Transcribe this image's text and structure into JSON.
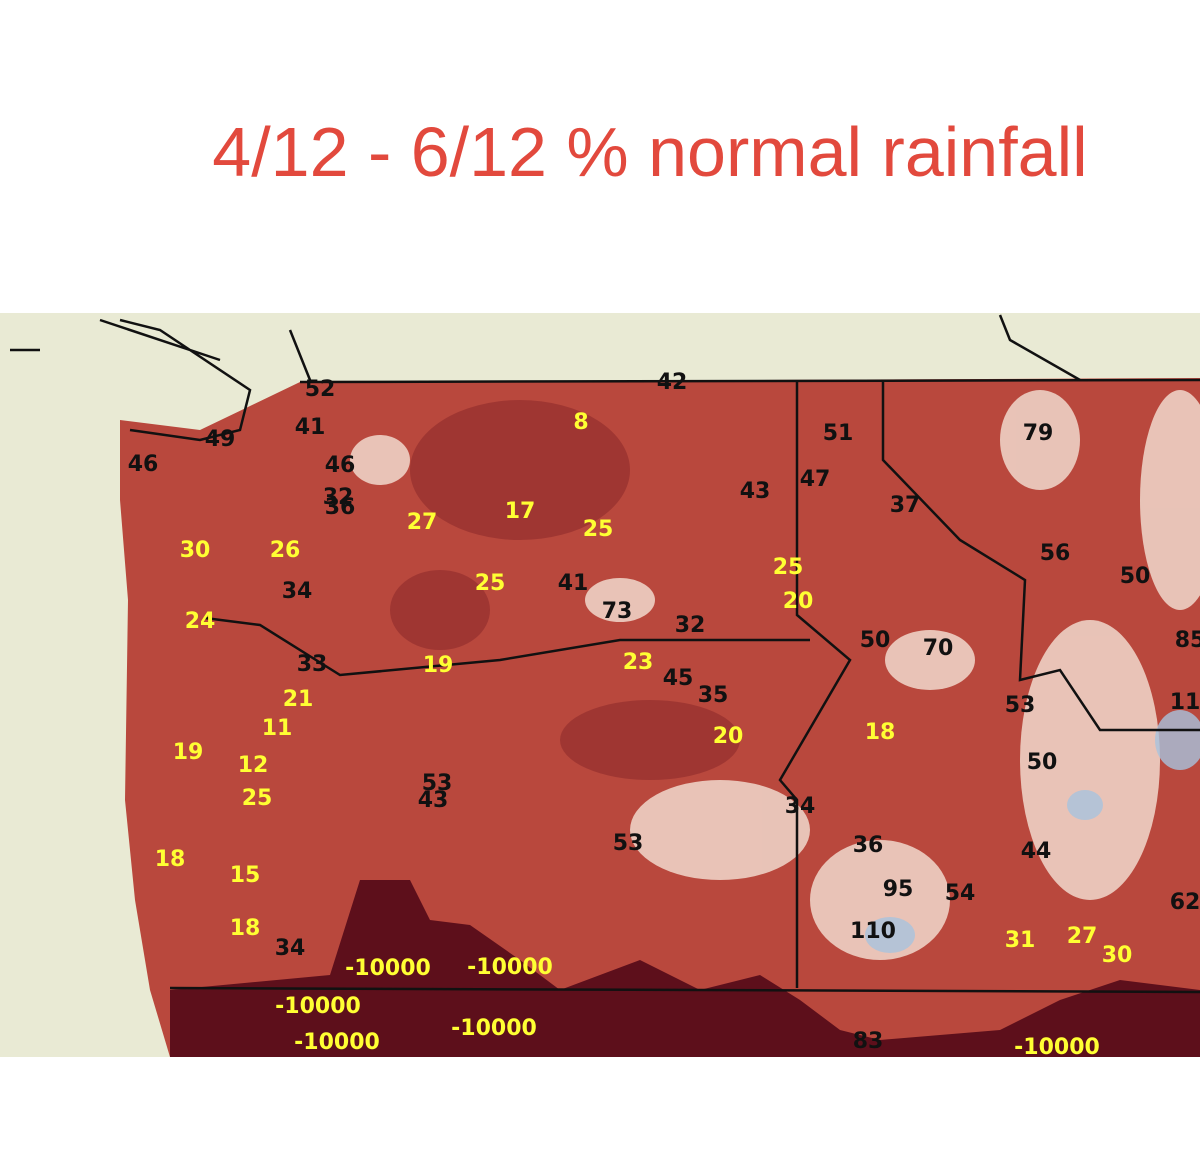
{
  "title": "4/12 - 6/12 % normal rainfall",
  "stations": [
    {
      "label": "52",
      "color": "#111111"
    },
    {
      "label": "42",
      "color": "#111111"
    },
    {
      "label": "49",
      "color": "#111111"
    },
    {
      "label": "41",
      "color": "#111111"
    },
    {
      "label": "46",
      "color": "#111111"
    },
    {
      "label": "46",
      "color": "#111111"
    },
    {
      "label": "32",
      "color": "#111111"
    },
    {
      "label": "36",
      "color": "#111111"
    },
    {
      "label": "51",
      "color": "#111111"
    },
    {
      "label": "79",
      "color": "#111111"
    },
    {
      "label": "43",
      "color": "#111111"
    },
    {
      "label": "47",
      "color": "#111111"
    },
    {
      "label": "37",
      "color": "#111111"
    },
    {
      "label": "56",
      "color": "#111111"
    },
    {
      "label": "50",
      "color": "#111111"
    },
    {
      "label": "34",
      "color": "#111111"
    },
    {
      "label": "41",
      "color": "#111111"
    },
    {
      "label": "73",
      "color": "#111111"
    },
    {
      "label": "32",
      "color": "#111111"
    },
    {
      "label": "50",
      "color": "#111111"
    },
    {
      "label": "70",
      "color": "#111111"
    },
    {
      "label": "85",
      "color": "#111111"
    },
    {
      "label": "33",
      "color": "#111111"
    },
    {
      "label": "45",
      "color": "#111111"
    },
    {
      "label": "35",
      "color": "#111111"
    },
    {
      "label": "53",
      "color": "#111111"
    },
    {
      "label": "11",
      "color": "#111111"
    },
    {
      "label": "50",
      "color": "#111111"
    },
    {
      "label": "53",
      "color": "#111111"
    },
    {
      "label": "43",
      "color": "#111111"
    },
    {
      "label": "34",
      "color": "#111111"
    },
    {
      "label": "53",
      "color": "#111111"
    },
    {
      "label": "36",
      "color": "#111111"
    },
    {
      "label": "44",
      "color": "#111111"
    },
    {
      "label": "95",
      "color": "#111111"
    },
    {
      "label": "54",
      "color": "#111111"
    },
    {
      "label": "62",
      "color": "#111111"
    },
    {
      "label": "110",
      "color": "#111111"
    },
    {
      "label": "34",
      "color": "#111111"
    },
    {
      "label": "83",
      "color": "#111111"
    },
    {
      "label": "8",
      "color": "#ffff33"
    },
    {
      "label": "27",
      "color": "#ffff33"
    },
    {
      "label": "17",
      "color": "#ffff33"
    },
    {
      "label": "25",
      "color": "#ffff33"
    },
    {
      "label": "30",
      "color": "#ffff33"
    },
    {
      "label": "26",
      "color": "#ffff33"
    },
    {
      "label": "24",
      "color": "#ffff33"
    },
    {
      "label": "25",
      "color": "#ffff33"
    },
    {
      "label": "25",
      "color": "#ffff33"
    },
    {
      "label": "20",
      "color": "#ffff33"
    },
    {
      "label": "19",
      "color": "#ffff33"
    },
    {
      "label": "23",
      "color": "#ffff33"
    },
    {
      "label": "21",
      "color": "#ffff33"
    },
    {
      "label": "11",
      "color": "#ffff33"
    },
    {
      "label": "20",
      "color": "#ffff33"
    },
    {
      "label": "18",
      "color": "#ffff33"
    },
    {
      "label": "19",
      "color": "#ffff33"
    },
    {
      "label": "12",
      "color": "#ffff33"
    },
    {
      "label": "25",
      "color": "#ffff33"
    },
    {
      "label": "18",
      "color": "#ffff33"
    },
    {
      "label": "15",
      "color": "#ffff33"
    },
    {
      "label": "18",
      "color": "#ffff33"
    },
    {
      "label": "-10000",
      "color": "#ffff33"
    },
    {
      "label": "-10000",
      "color": "#ffff33"
    },
    {
      "label": "31",
      "color": "#ffff33"
    },
    {
      "label": "27",
      "color": "#ffff33"
    },
    {
      "label": "30",
      "color": "#ffff33"
    },
    {
      "label": "-10000",
      "color": "#ffff33"
    },
    {
      "label": "-10000",
      "color": "#ffff33"
    },
    {
      "label": "-10000",
      "color": "#ffff33"
    },
    {
      "label": "-10000",
      "color": "#ffff33"
    }
  ]
}
